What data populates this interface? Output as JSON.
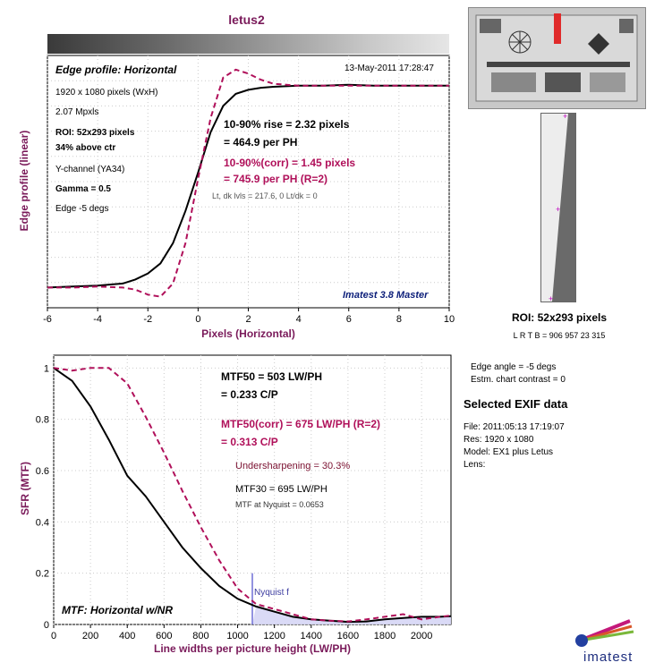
{
  "title": "letus2",
  "top_panel": {
    "header": "Edge profile: Horizontal",
    "date": "13-May-2011 17:28:47",
    "info": [
      "1920 x 1080 pixels (WxH)",
      "2.07 Mpxls",
      "ROI:  52x293 pixels",
      "34% above ctr",
      "Y-channel  (YA34)",
      "Gamma = 0.5",
      "Edge -5 degs"
    ],
    "rise_line1": "10-90% rise = 2.32 pixels",
    "rise_line2": "= 464.9 per PH",
    "corr_line1": "10-90%(corr) = 1.45 pixels",
    "corr_line2": "= 745.9 per PH  (R=2)",
    "levels": "Lt, dk lvls = 217.6, 0   Lt/dk = 0",
    "imatest_label": "Imatest 3.8 Master",
    "xlabel": "Pixels (Horizontal)",
    "ylabel": "Edge profile (linear)"
  },
  "bottom_panel": {
    "mtf50_line1": "MTF50 = 503 LW/PH",
    "mtf50_line2": "= 0.233 C/P",
    "mtf50corr_line1": "MTF50(corr) = 675 LW/PH  (R=2)",
    "mtf50corr_line2": "= 0.313 C/P",
    "undersharpening": "Undersharpening = 30.3%",
    "mtf30": "MTF30 = 695 LW/PH",
    "nyquist_mtf": "MTF at Nyquist = 0.0653",
    "nyquist_label": "Nyquist f",
    "footer_label": "MTF: Horizontal w/NR",
    "xlabel": "Line widths per picture height (LW/PH)",
    "ylabel": "SFR (MTF)"
  },
  "side_panel": {
    "roi_title": "ROI:  52x293 pixels",
    "roi_coords": "L R  T B = 906 957  23 315",
    "edge_angle": "Edge angle = -5 degs",
    "chart_contrast": "Estm. chart contrast = 0",
    "exif_title": "Selected EXIF data",
    "exif": [
      "File:  2011:05:13 17:19:07",
      "Res:   1920 x 1080",
      "Model: EX1 plus Letus",
      "Lens:"
    ],
    "logo_text": "imatest"
  },
  "colors": {
    "measured": "#000000",
    "corrected": "#b0105a",
    "nyquist": "#6f6fd6",
    "title": "#7a1a5a",
    "logo_text": "#1f2f7f"
  },
  "chart_data": [
    {
      "type": "line",
      "title": "Edge profile: Horizontal",
      "xlabel": "Pixels (Horizontal)",
      "ylabel": "Edge profile (linear)",
      "xlim": [
        -6,
        10
      ],
      "ylim": [
        -0.1,
        1.15
      ],
      "xticks": [
        -6,
        -4,
        -2,
        0,
        2,
        4,
        6,
        8,
        10
      ],
      "grid": true,
      "series": [
        {
          "style": "solid-black",
          "x": [
            -6,
            -5,
            -4,
            -3,
            -2.5,
            -2,
            -1.5,
            -1,
            -0.5,
            0,
            0.5,
            1,
            1.5,
            2,
            2.5,
            3,
            4,
            5,
            6,
            7,
            8,
            9,
            10
          ],
          "y": [
            0.0,
            0.005,
            0.01,
            0.02,
            0.04,
            0.07,
            0.12,
            0.22,
            0.38,
            0.57,
            0.77,
            0.9,
            0.96,
            0.98,
            0.99,
            0.995,
            1.0,
            1.0,
            1.005,
            1.0,
            1.0,
            1.0,
            1.0
          ]
        },
        {
          "style": "dashed-magenta",
          "x": [
            -6,
            -5,
            -4,
            -3,
            -2.5,
            -2,
            -1.5,
            -1,
            -0.5,
            0,
            0.5,
            1,
            1.5,
            2,
            2.5,
            3,
            4,
            5,
            6,
            7,
            8,
            9,
            10
          ],
          "y": [
            0.0,
            0.0,
            0.005,
            0.0,
            -0.01,
            -0.035,
            -0.045,
            0.02,
            0.22,
            0.54,
            0.84,
            1.04,
            1.08,
            1.06,
            1.03,
            1.01,
            1.0,
            1.0,
            1.0,
            1.0,
            1.0,
            1.0,
            1.0
          ]
        }
      ]
    },
    {
      "type": "line",
      "xlabel": "Line widths per picture height (LW/PH)",
      "ylabel": "SFR (MTF)",
      "xlim": [
        0,
        2160
      ],
      "ylim": [
        0,
        1.05
      ],
      "xticks": [
        0,
        200,
        400,
        600,
        800,
        1000,
        1200,
        1400,
        1600,
        1800,
        2000
      ],
      "yticks": [
        0,
        0.2,
        0.4,
        0.6,
        0.8,
        1
      ],
      "nyquist_x": 1080,
      "grid": true,
      "series": [
        {
          "style": "solid-black",
          "x": [
            0,
            100,
            200,
            300,
            400,
            500,
            600,
            700,
            800,
            900,
            1000,
            1100,
            1200,
            1300,
            1400,
            1500,
            1600,
            1700,
            1800,
            1900,
            2000,
            2100,
            2160
          ],
          "y": [
            1.0,
            0.95,
            0.85,
            0.72,
            0.58,
            0.5,
            0.4,
            0.3,
            0.22,
            0.15,
            0.1,
            0.07,
            0.05,
            0.03,
            0.02,
            0.015,
            0.01,
            0.012,
            0.02,
            0.025,
            0.03,
            0.03,
            0.032
          ]
        },
        {
          "style": "dashed-magenta",
          "x": [
            0,
            100,
            200,
            300,
            400,
            500,
            600,
            700,
            800,
            900,
            1000,
            1100,
            1200,
            1300,
            1400,
            1500,
            1600,
            1700,
            1800,
            1900,
            2000,
            2100,
            2160
          ],
          "y": [
            1.0,
            0.99,
            1.0,
            1.0,
            0.94,
            0.81,
            0.67,
            0.52,
            0.38,
            0.25,
            0.14,
            0.08,
            0.06,
            0.04,
            0.02,
            0.015,
            0.012,
            0.02,
            0.03,
            0.04,
            0.02,
            0.03,
            0.035
          ]
        }
      ]
    }
  ]
}
